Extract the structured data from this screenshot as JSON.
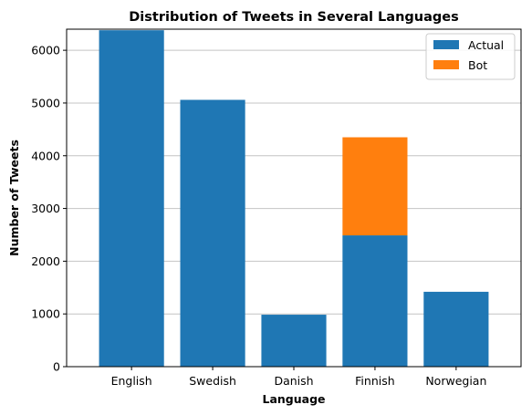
{
  "chart_data": {
    "type": "bar",
    "stacked": true,
    "title": "Distribution of Tweets in Several Languages",
    "xlabel": "Language",
    "ylabel": "Number of Tweets",
    "categories": [
      "English",
      "Swedish",
      "Danish",
      "Finnish",
      "Norwegian"
    ],
    "series": [
      {
        "name": "Actual",
        "color": "#1f77b4",
        "values": [
          6380,
          5060,
          985,
          2490,
          1420
        ]
      },
      {
        "name": "Bot",
        "color": "#ff7f0e",
        "values": [
          0,
          0,
          0,
          1860,
          0
        ]
      }
    ],
    "ylim": [
      0,
      6400
    ],
    "yticks": [
      0,
      1000,
      2000,
      3000,
      4000,
      5000,
      6000
    ],
    "grid": "horizontal",
    "legend_position": "top-right"
  }
}
